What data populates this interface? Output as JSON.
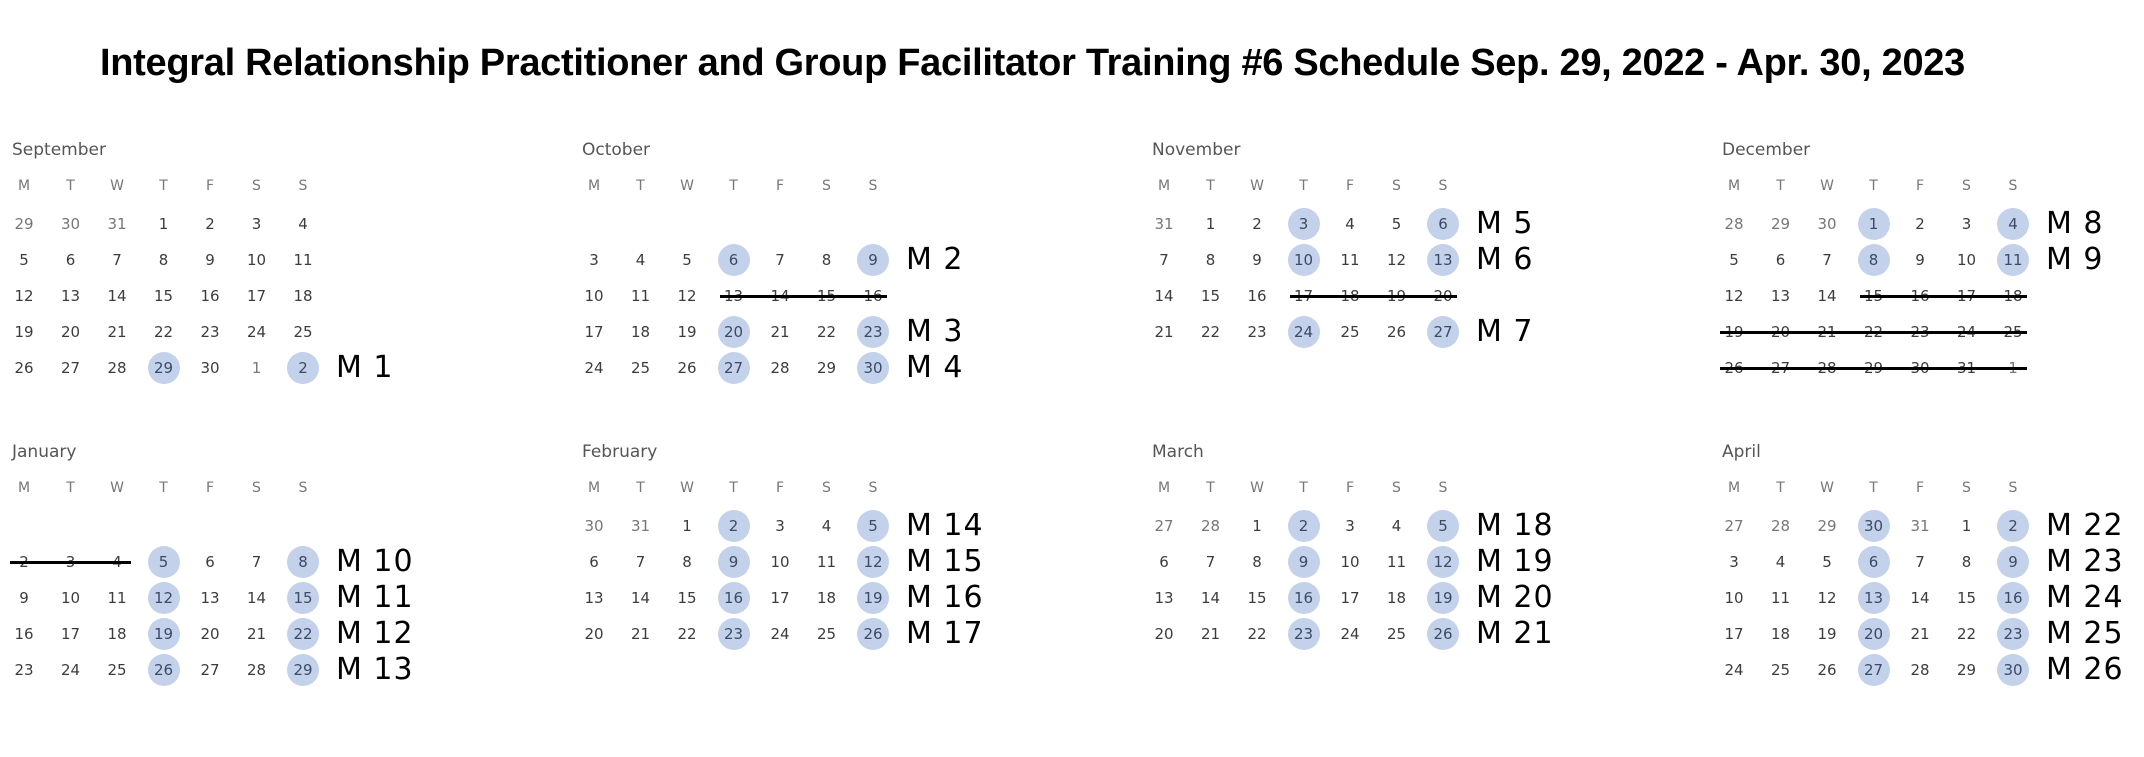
{
  "title": "Integral Relationship Practitioner and Group Facilitator Training #6 Schedule Sep. 29, 2022 - Apr. 30, 2023",
  "weekday_headers": [
    "M",
    "T",
    "W",
    "T",
    "F",
    "S",
    "S"
  ],
  "highlight_color": "#c3d1ea",
  "months": [
    {
      "name": "September",
      "rows": [
        {
          "days": [
            "29",
            "30",
            "31",
            "1",
            "2",
            "3",
            "4"
          ],
          "dim": [
            0,
            1,
            2
          ],
          "highlight": [],
          "strike": null,
          "module": ""
        },
        {
          "days": [
            "5",
            "6",
            "7",
            "8",
            "9",
            "10",
            "11"
          ],
          "dim": [],
          "highlight": [],
          "strike": null,
          "module": ""
        },
        {
          "days": [
            "12",
            "13",
            "14",
            "15",
            "16",
            "17",
            "18"
          ],
          "dim": [],
          "highlight": [],
          "strike": null,
          "module": ""
        },
        {
          "days": [
            "19",
            "20",
            "21",
            "22",
            "23",
            "24",
            "25"
          ],
          "dim": [],
          "highlight": [],
          "strike": null,
          "module": ""
        },
        {
          "days": [
            "26",
            "27",
            "28",
            "29",
            "30",
            "1",
            "2"
          ],
          "dim": [
            5,
            6
          ],
          "highlight": [
            3,
            6
          ],
          "strike": null,
          "module": "M 1"
        }
      ]
    },
    {
      "name": "October",
      "rows": [
        {
          "days": [
            "",
            "",
            "",
            "",
            "",
            "",
            ""
          ],
          "dim": [],
          "highlight": [],
          "strike": null,
          "module": ""
        },
        {
          "days": [
            "3",
            "4",
            "5",
            "6",
            "7",
            "8",
            "9"
          ],
          "dim": [],
          "highlight": [
            3,
            6
          ],
          "strike": null,
          "module": "M 2"
        },
        {
          "days": [
            "10",
            "11",
            "12",
            "13",
            "14",
            "15",
            "16"
          ],
          "dim": [],
          "highlight": [],
          "strike": [
            3,
            6
          ],
          "module": ""
        },
        {
          "days": [
            "17",
            "18",
            "19",
            "20",
            "21",
            "22",
            "23"
          ],
          "dim": [],
          "highlight": [
            3,
            6
          ],
          "strike": null,
          "module": "M 3"
        },
        {
          "days": [
            "24",
            "25",
            "26",
            "27",
            "28",
            "29",
            "30"
          ],
          "dim": [],
          "highlight": [
            3,
            6
          ],
          "strike": null,
          "module": "M 4"
        }
      ]
    },
    {
      "name": "November",
      "rows": [
        {
          "days": [
            "31",
            "1",
            "2",
            "3",
            "4",
            "5",
            "6"
          ],
          "dim": [
            0
          ],
          "highlight": [
            3,
            6
          ],
          "strike": null,
          "module": "M 5"
        },
        {
          "days": [
            "7",
            "8",
            "9",
            "10",
            "11",
            "12",
            "13"
          ],
          "dim": [],
          "highlight": [
            3,
            6
          ],
          "strike": null,
          "module": "M 6"
        },
        {
          "days": [
            "14",
            "15",
            "16",
            "17",
            "18",
            "19",
            "20"
          ],
          "dim": [],
          "highlight": [],
          "strike": [
            3,
            6
          ],
          "module": ""
        },
        {
          "days": [
            "21",
            "22",
            "23",
            "24",
            "25",
            "26",
            "27"
          ],
          "dim": [],
          "highlight": [
            3,
            6
          ],
          "strike": null,
          "module": "M 7"
        },
        {
          "days": [
            "",
            "",
            "",
            "",
            "",
            "",
            ""
          ],
          "dim": [],
          "highlight": [],
          "strike": null,
          "module": ""
        }
      ]
    },
    {
      "name": "December",
      "rows": [
        {
          "days": [
            "28",
            "29",
            "30",
            "1",
            "2",
            "3",
            "4"
          ],
          "dim": [
            0,
            1,
            2
          ],
          "highlight": [
            3,
            6
          ],
          "strike": null,
          "module": "M 8"
        },
        {
          "days": [
            "5",
            "6",
            "7",
            "8",
            "9",
            "10",
            "11"
          ],
          "dim": [],
          "highlight": [
            3,
            6
          ],
          "strike": null,
          "module": "M 9"
        },
        {
          "days": [
            "12",
            "13",
            "14",
            "15",
            "16",
            "17",
            "18"
          ],
          "dim": [],
          "highlight": [],
          "strike": [
            3,
            6
          ],
          "module": ""
        },
        {
          "days": [
            "19",
            "20",
            "21",
            "22",
            "23",
            "24",
            "25"
          ],
          "dim": [],
          "highlight": [],
          "strike": [
            0,
            6
          ],
          "module": ""
        },
        {
          "days": [
            "26",
            "27",
            "28",
            "29",
            "30",
            "31",
            "1"
          ],
          "dim": [
            6
          ],
          "highlight": [],
          "strike": [
            0,
            6
          ],
          "module": ""
        }
      ]
    },
    {
      "name": "January",
      "rows": [
        {
          "days": [
            "",
            "",
            "",
            "",
            "",
            "",
            ""
          ],
          "dim": [],
          "highlight": [],
          "strike": null,
          "module": ""
        },
        {
          "days": [
            "2",
            "3",
            "4",
            "5",
            "6",
            "7",
            "8"
          ],
          "dim": [],
          "highlight": [
            3,
            6
          ],
          "strike": [
            0,
            2
          ],
          "module": "M 10"
        },
        {
          "days": [
            "9",
            "10",
            "11",
            "12",
            "13",
            "14",
            "15"
          ],
          "dim": [],
          "highlight": [
            3,
            6
          ],
          "strike": null,
          "module": "M 11"
        },
        {
          "days": [
            "16",
            "17",
            "18",
            "19",
            "20",
            "21",
            "22"
          ],
          "dim": [],
          "highlight": [
            3,
            6
          ],
          "strike": null,
          "module": "M 12"
        },
        {
          "days": [
            "23",
            "24",
            "25",
            "26",
            "27",
            "28",
            "29"
          ],
          "dim": [],
          "highlight": [
            3,
            6
          ],
          "strike": null,
          "module": "M 13"
        }
      ]
    },
    {
      "name": "February",
      "rows": [
        {
          "days": [
            "30",
            "31",
            "1",
            "2",
            "3",
            "4",
            "5"
          ],
          "dim": [
            0,
            1
          ],
          "highlight": [
            3,
            6
          ],
          "strike": null,
          "module": "M 14"
        },
        {
          "days": [
            "6",
            "7",
            "8",
            "9",
            "10",
            "11",
            "12"
          ],
          "dim": [],
          "highlight": [
            3,
            6
          ],
          "strike": null,
          "module": "M 15"
        },
        {
          "days": [
            "13",
            "14",
            "15",
            "16",
            "17",
            "18",
            "19"
          ],
          "dim": [],
          "highlight": [
            3,
            6
          ],
          "strike": null,
          "module": "M 16"
        },
        {
          "days": [
            "20",
            "21",
            "22",
            "23",
            "24",
            "25",
            "26"
          ],
          "dim": [],
          "highlight": [
            3,
            6
          ],
          "strike": null,
          "module": "M 17"
        },
        {
          "days": [
            "",
            "",
            "",
            "",
            "",
            "",
            ""
          ],
          "dim": [],
          "highlight": [],
          "strike": null,
          "module": ""
        }
      ]
    },
    {
      "name": "March",
      "rows": [
        {
          "days": [
            "27",
            "28",
            "1",
            "2",
            "3",
            "4",
            "5"
          ],
          "dim": [
            0,
            1
          ],
          "highlight": [
            3,
            6
          ],
          "strike": null,
          "module": "M 18"
        },
        {
          "days": [
            "6",
            "7",
            "8",
            "9",
            "10",
            "11",
            "12"
          ],
          "dim": [],
          "highlight": [
            3,
            6
          ],
          "strike": null,
          "module": "M 19"
        },
        {
          "days": [
            "13",
            "14",
            "15",
            "16",
            "17",
            "18",
            "19"
          ],
          "dim": [],
          "highlight": [
            3,
            6
          ],
          "strike": null,
          "module": "M 20"
        },
        {
          "days": [
            "20",
            "21",
            "22",
            "23",
            "24",
            "25",
            "26"
          ],
          "dim": [],
          "highlight": [
            3,
            6
          ],
          "strike": null,
          "module": "M 21"
        },
        {
          "days": [
            "",
            "",
            "",
            "",
            "",
            "",
            ""
          ],
          "dim": [],
          "highlight": [],
          "strike": null,
          "module": ""
        }
      ]
    },
    {
      "name": "April",
      "rows": [
        {
          "days": [
            "27",
            "28",
            "29",
            "30",
            "31",
            "1",
            "2"
          ],
          "dim": [
            0,
            1,
            2,
            3,
            4
          ],
          "highlight": [
            3,
            6
          ],
          "strike": null,
          "module": "M 22"
        },
        {
          "days": [
            "3",
            "4",
            "5",
            "6",
            "7",
            "8",
            "9"
          ],
          "dim": [],
          "highlight": [
            3,
            6
          ],
          "strike": null,
          "module": "M 23"
        },
        {
          "days": [
            "10",
            "11",
            "12",
            "13",
            "14",
            "15",
            "16"
          ],
          "dim": [],
          "highlight": [
            3,
            6
          ],
          "strike": null,
          "module": "M 24"
        },
        {
          "days": [
            "17",
            "18",
            "19",
            "20",
            "21",
            "22",
            "23"
          ],
          "dim": [],
          "highlight": [
            3,
            6
          ],
          "strike": null,
          "module": "M 25"
        },
        {
          "days": [
            "24",
            "25",
            "26",
            "27",
            "28",
            "29",
            "30"
          ],
          "dim": [],
          "highlight": [
            3,
            6
          ],
          "strike": null,
          "module": "M 26"
        }
      ]
    }
  ]
}
